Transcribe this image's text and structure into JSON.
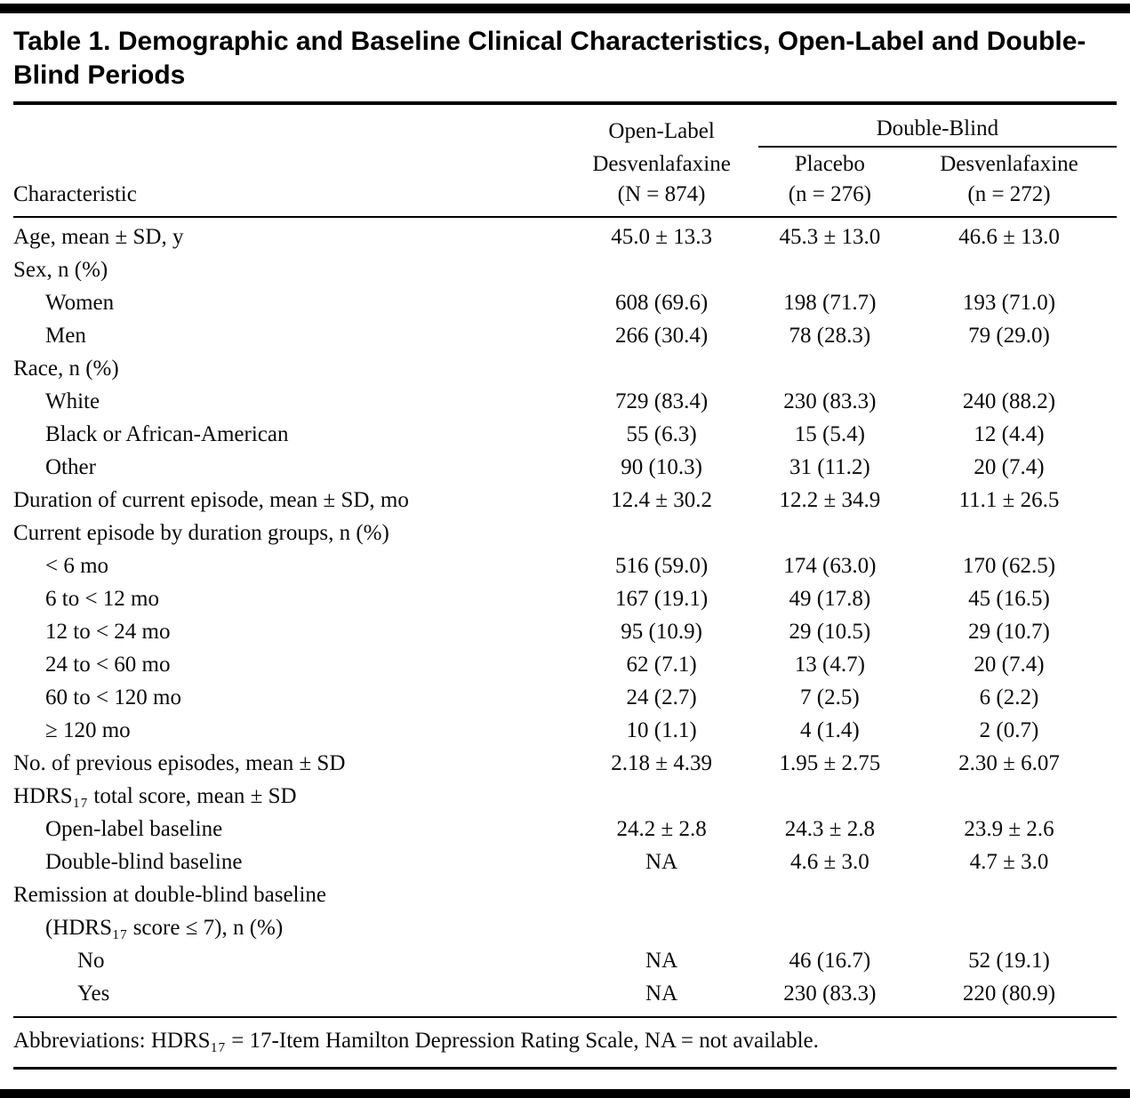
{
  "colors": {
    "rule": "#000000",
    "text": "#0a0a0a",
    "background": "#ffffff"
  },
  "title": "Table 1. Demographic and Baseline Clinical Characteristics, Open-Label and Double-Blind Periods",
  "header": {
    "characteristic": "Characteristic",
    "open_label": {
      "line1": "Open-Label",
      "line2": "Desvenlafaxine",
      "line3": "(N = 874)"
    },
    "double_blind": "Double-Blind",
    "placebo": {
      "line1": "Placebo",
      "line2": "(n = 276)"
    },
    "desvenlafaxine": {
      "line1": "Desvenlafaxine",
      "line2": "(n = 272)"
    }
  },
  "rows": [
    {
      "label": "Age, mean ± SD, y",
      "indent": 0,
      "values": [
        "45.0 ± 13.3",
        "45.3 ± 13.0",
        "46.6 ± 13.0"
      ]
    },
    {
      "label": "Sex, n (%)",
      "indent": 0,
      "values": [
        "",
        "",
        ""
      ]
    },
    {
      "label": "Women",
      "indent": 1,
      "values": [
        "608 (69.6)",
        "198 (71.7)",
        "193 (71.0)"
      ]
    },
    {
      "label": "Men",
      "indent": 1,
      "values": [
        "266 (30.4)",
        "78 (28.3)",
        "79 (29.0)"
      ]
    },
    {
      "label": "Race, n (%)",
      "indent": 0,
      "values": [
        "",
        "",
        ""
      ]
    },
    {
      "label": "White",
      "indent": 1,
      "values": [
        "729 (83.4)",
        "230 (83.3)",
        "240 (88.2)"
      ]
    },
    {
      "label": "Black or African-American",
      "indent": 1,
      "values": [
        "55 (6.3)",
        "15 (5.4)",
        "12 (4.4)"
      ]
    },
    {
      "label": "Other",
      "indent": 1,
      "values": [
        "90 (10.3)",
        "31 (11.2)",
        "20 (7.4)"
      ]
    },
    {
      "label": "Duration of current episode, mean ± SD, mo",
      "indent": 0,
      "values": [
        "12.4 ± 30.2",
        "12.2 ± 34.9",
        "11.1 ± 26.5"
      ]
    },
    {
      "label": "Current episode by duration groups, n (%)",
      "indent": 0,
      "values": [
        "",
        "",
        ""
      ]
    },
    {
      "label": "< 6 mo",
      "indent": 1,
      "values": [
        "516 (59.0)",
        "174 (63.0)",
        "170 (62.5)"
      ]
    },
    {
      "label": "6 to < 12 mo",
      "indent": 1,
      "values": [
        "167 (19.1)",
        "49 (17.8)",
        "45 (16.5)"
      ]
    },
    {
      "label": "12 to < 24 mo",
      "indent": 1,
      "values": [
        "95 (10.9)",
        "29 (10.5)",
        "29 (10.7)"
      ]
    },
    {
      "label": "24 to < 60 mo",
      "indent": 1,
      "values": [
        "62 (7.1)",
        "13 (4.7)",
        "20 (7.4)"
      ]
    },
    {
      "label": "60 to < 120 mo",
      "indent": 1,
      "values": [
        "24 (2.7)",
        "7 (2.5)",
        "6 (2.2)"
      ]
    },
    {
      "label": "≥ 120 mo",
      "indent": 1,
      "values": [
        "10 (1.1)",
        "4 (1.4)",
        "2 (0.7)"
      ]
    },
    {
      "label": "No. of previous episodes, mean ± SD",
      "indent": 0,
      "values": [
        "2.18 ± 4.39",
        "1.95 ± 2.75",
        "2.30 ± 6.07"
      ]
    },
    {
      "label": "HDRS₁₇ total score, mean ± SD",
      "indent": 0,
      "values": [
        "",
        "",
        ""
      ]
    },
    {
      "label": "Open-label baseline",
      "indent": 1,
      "values": [
        "24.2 ± 2.8",
        "24.3 ± 2.8",
        "23.9 ± 2.6"
      ]
    },
    {
      "label": "Double-blind baseline",
      "indent": 1,
      "values": [
        "NA",
        "4.6 ± 3.0",
        "4.7 ± 3.0"
      ]
    },
    {
      "label": "Remission at double-blind baseline",
      "indent": 0,
      "values": [
        "",
        "",
        ""
      ]
    },
    {
      "label": "(HDRS₁₇ score ≤ 7), n (%)",
      "indent": 1,
      "values": [
        "",
        "",
        ""
      ]
    },
    {
      "label": "No",
      "indent": 2,
      "values": [
        "NA",
        "46 (16.7)",
        "52 (19.1)"
      ]
    },
    {
      "label": "Yes",
      "indent": 2,
      "values": [
        "NA",
        "230 (83.3)",
        "220 (80.9)"
      ]
    }
  ],
  "footnote": "Abbreviations: HDRS₁₇ = 17-Item Hamilton Depression Rating Scale, NA = not available."
}
